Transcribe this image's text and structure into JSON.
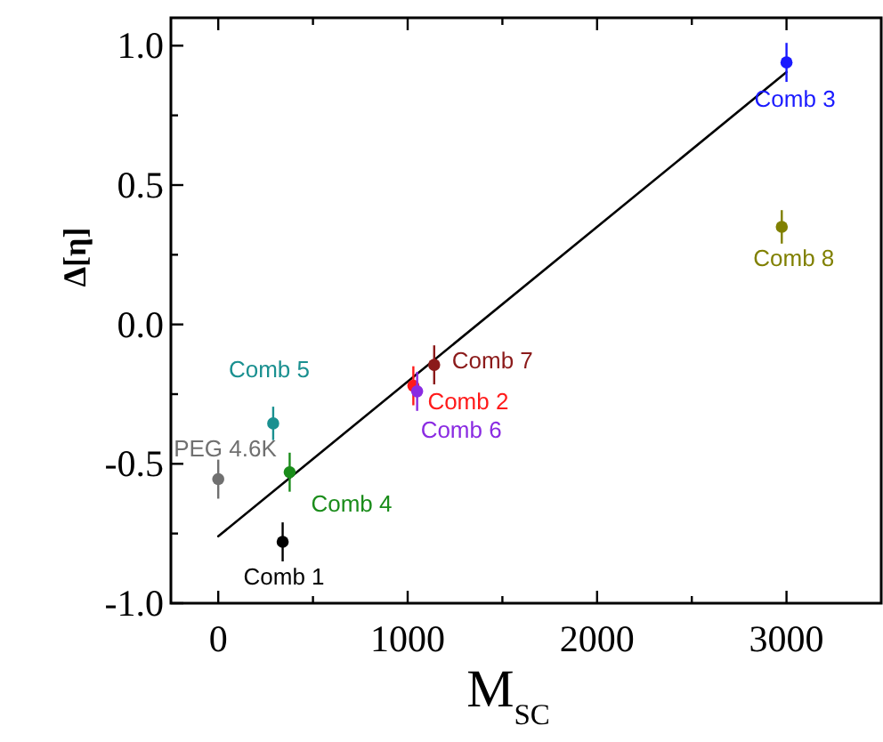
{
  "chart_data": {
    "type": "scatter",
    "xlabel": "M$_{SC}$",
    "ylabel": "Δ[η]",
    "xlim": [
      -250,
      3500
    ],
    "ylim": [
      -1.0,
      1.1
    ],
    "xticks": [
      0,
      {
        "value": 500,
        "label": null
      },
      1000,
      {
        "value": 1500,
        "label": null
      },
      2000,
      {
        "value": 2500,
        "label": null
      },
      3000
    ],
    "yticks": [
      {
        "value": -1.0,
        "label": "-1.0"
      },
      {
        "value": -0.75,
        "label": null
      },
      {
        "value": -0.5,
        "label": "-0.5"
      },
      {
        "value": -0.25,
        "label": null
      },
      {
        "value": 0.0,
        "label": "0.0"
      },
      {
        "value": 0.25,
        "label": null
      },
      {
        "value": 0.5,
        "label": "0.5"
      },
      {
        "value": 0.75,
        "label": null
      },
      {
        "value": 1.0,
        "label": "1.0"
      }
    ],
    "grid": false,
    "marker": "circle",
    "series": [
      {
        "type": "line",
        "color": "#000000",
        "x": [
          0,
          3000
        ],
        "values": [
          -0.76,
          0.905
        ],
        "marker": "none",
        "line_style": "solid"
      },
      {
        "name": "PEG 4.6K",
        "color": "#707070",
        "x": [
          0
        ],
        "values": [
          -0.555
        ],
        "errors": [
          0.07
        ]
      },
      {
        "name": "Comb 5",
        "color": "#1a9090",
        "x": [
          290
        ],
        "values": [
          -0.355
        ],
        "errors": [
          0.06
        ]
      },
      {
        "name": "Comb 4",
        "color": "#1a8c1a",
        "x": [
          377
        ],
        "values": [
          -0.53
        ],
        "errors": [
          0.07
        ]
      },
      {
        "name": "Comb 1",
        "color": "#000000",
        "x": [
          340
        ],
        "values": [
          -0.78
        ],
        "errors": [
          0.07
        ]
      },
      {
        "name": "Comb 2",
        "color": "#ff1a1a",
        "x": [
          1030
        ],
        "values": [
          -0.22
        ],
        "errors": [
          0.07
        ]
      },
      {
        "name": "Comb 6",
        "color": "#8a2be2",
        "x": [
          1050
        ],
        "values": [
          -0.24
        ],
        "errors": [
          0.07
        ]
      },
      {
        "name": "Comb 7",
        "color": "#8b1a1a",
        "x": [
          1140
        ],
        "values": [
          -0.145
        ],
        "errors": [
          0.07
        ]
      },
      {
        "name": "Comb 3",
        "color": "#1a1aff",
        "x": [
          3000
        ],
        "values": [
          0.94
        ],
        "errors": [
          0.07
        ]
      },
      {
        "name": "Comb 8",
        "color": "#808000",
        "x": [
          2975
        ],
        "values": [
          0.35
        ],
        "errors": [
          0.06
        ]
      }
    ]
  }
}
